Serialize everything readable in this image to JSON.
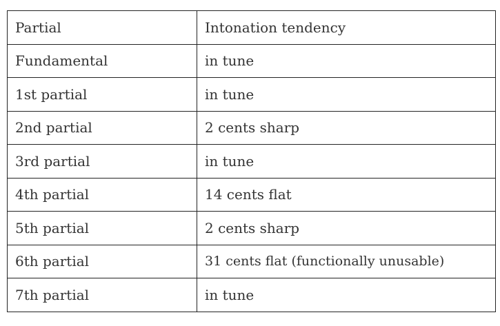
{
  "table": {
    "headers": [
      "Partial",
      "Intonation tendency"
    ],
    "rows": [
      [
        "Fundamental",
        "in tune"
      ],
      [
        "1st partial",
        "in tune"
      ],
      [
        "2nd partial",
        "2 cents sharp"
      ],
      [
        "3rd partial",
        "in tune"
      ],
      [
        "4th partial",
        "14 cents flat"
      ],
      [
        "5th partial",
        "2 cents sharp"
      ],
      [
        "6th partial",
        "31 cents flat (functionally unusable)"
      ],
      [
        "7th partial",
        "in tune"
      ]
    ]
  }
}
